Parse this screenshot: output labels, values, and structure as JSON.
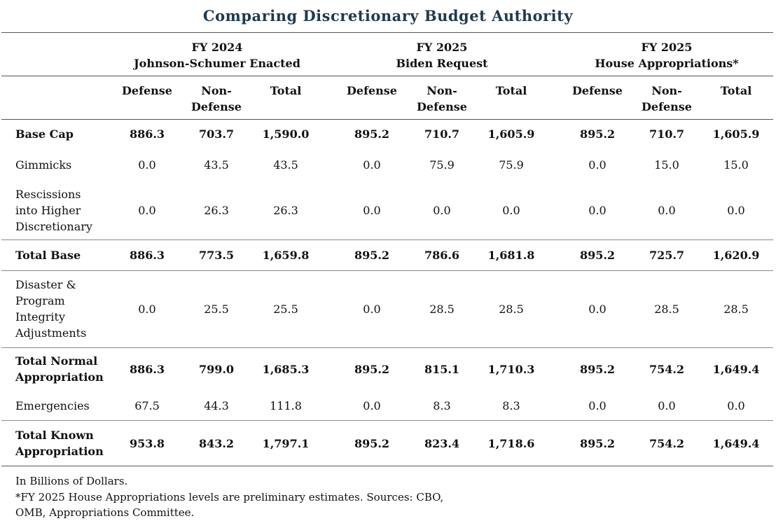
{
  "title": "Comparing Discretionary Budget Authority",
  "groups": [
    {
      "line1": "FY 2024",
      "line2": "Johnson-Schumer Enacted"
    },
    {
      "line1": "FY 2025",
      "line2": "Biden Request"
    },
    {
      "line1": "FY 2025",
      "line2": "House Appropriations*"
    }
  ],
  "subheaders": [
    "Defense",
    "Non-\nDefense",
    "Total"
  ],
  "rows": [
    {
      "label": "Base Cap",
      "bold": true,
      "values": [
        "886.3",
        "703.7",
        "1,590.0",
        "895.2",
        "710.7",
        "1,605.9",
        "895.2",
        "710.7",
        "1,605.9"
      ]
    },
    {
      "label": "Gimmicks",
      "bold": false,
      "values": [
        "0.0",
        "43.5",
        "43.5",
        "0.0",
        "75.9",
        "75.9",
        "0.0",
        "15.0",
        "15.0"
      ]
    },
    {
      "label": "Rescissions\ninto Higher\nDiscretionary",
      "bold": false,
      "values": [
        "0.0",
        "26.3",
        "26.3",
        "0.0",
        "0.0",
        "0.0",
        "0.0",
        "0.0",
        "0.0"
      ]
    },
    {
      "label": "Total Base",
      "bold": true,
      "values": [
        "886.3",
        "773.5",
        "1,659.8",
        "895.2",
        "786.6",
        "1,681.8",
        "895.2",
        "725.7",
        "1,620.9"
      ]
    },
    {
      "label": "Disaster &\nProgram\nIntegrity\nAdjustments",
      "bold": false,
      "values": [
        "0.0",
        "25.5",
        "25.5",
        "0.0",
        "28.5",
        "28.5",
        "0.0",
        "28.5",
        "28.5"
      ]
    },
    {
      "label": "Total Normal\nAppropriation",
      "bold": true,
      "values": [
        "886.3",
        "799.0",
        "1,685.3",
        "895.2",
        "815.1",
        "1,710.3",
        "895.2",
        "754.2",
        "1,649.4"
      ]
    },
    {
      "label": "Emergencies",
      "bold": false,
      "values": [
        "67.5",
        "44.3",
        "111.8",
        "0.0",
        "8.3",
        "8.3",
        "0.0",
        "0.0",
        "0.0"
      ]
    },
    {
      "label": "Total Known\nAppropriation",
      "bold": true,
      "values": [
        "953.8",
        "843.2",
        "1,797.1",
        "895.2",
        "823.4",
        "1,718.6",
        "895.2",
        "754.2",
        "1,649.4"
      ]
    }
  ],
  "footnotes": [
    "In Billions of Dollars.",
    "*FY 2025 House Appropriations levels are preliminary estimates. Sources: CBO,",
    "OMB, Appropriations Committee."
  ]
}
